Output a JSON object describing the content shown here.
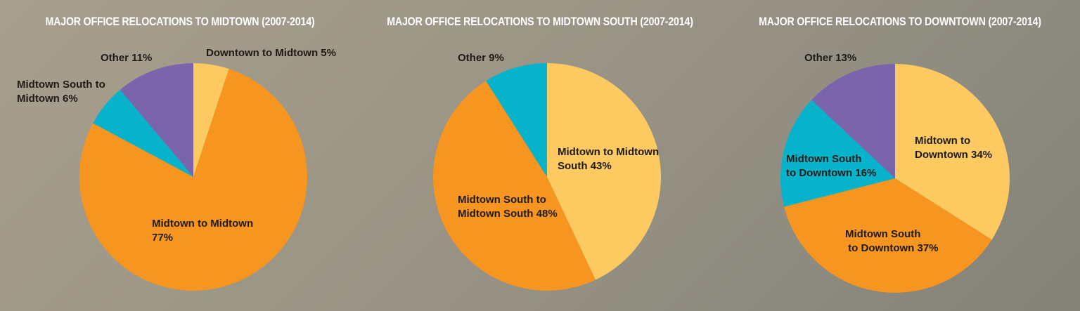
{
  "chart_data": [
    {
      "type": "pie",
      "title": "MAJOR OFFICE RELOCATIONS TO MIDTOWN (2007-2014)",
      "slices": [
        {
          "label": "Downtown to Midtown 5%",
          "value": 5,
          "color": "#fdca62"
        },
        {
          "label": "Midtown to Midtown 77%",
          "value": 77,
          "color": "#f6951f"
        },
        {
          "label": "Midtown South to Midtown 6%",
          "value": 6,
          "color": "#06b3ca"
        },
        {
          "label": "Other 11%",
          "value": 11,
          "color": "#7a64ab"
        }
      ]
    },
    {
      "type": "pie",
      "title": "MAJOR OFFICE RELOCATIONS TO MIDTOWN SOUTH (2007-2014)",
      "slices": [
        {
          "label": "Midtown to Midtown South 43%",
          "value": 43,
          "color": "#fdca62"
        },
        {
          "label": "Midtown South to Midtown South 48%",
          "value": 48,
          "color": "#f6951f"
        },
        {
          "label": "Other 9%",
          "value": 9,
          "color": "#06b3ca"
        }
      ]
    },
    {
      "type": "pie",
      "title": "MAJOR OFFICE RELOCATIONS TO DOWNTOWN (2007-2014)",
      "slices": [
        {
          "label": "Midtown to Downtown 34%",
          "value": 34,
          "color": "#fdca62"
        },
        {
          "label": "Midtown South to Downtown 37%",
          "value": 37,
          "color": "#f6951f"
        },
        {
          "label": "Midtown South to Downtown 16%",
          "value": 16,
          "color": "#06b3ca"
        },
        {
          "label": "Other 13%",
          "value": 13,
          "color": "#7a64ab"
        }
      ]
    }
  ]
}
